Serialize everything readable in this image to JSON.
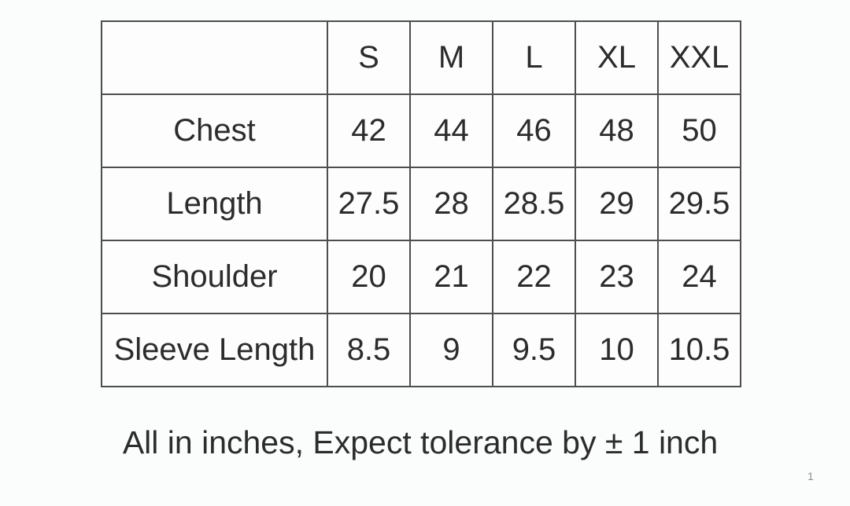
{
  "table": {
    "corner": "",
    "size_headers": [
      "S",
      "M",
      "L",
      "XL",
      "XXL"
    ],
    "rows": [
      {
        "label": "Chest",
        "values": [
          "42",
          "44",
          "46",
          "48",
          "50"
        ]
      },
      {
        "label": "Length",
        "values": [
          "27.5",
          "28",
          "28.5",
          "29",
          "29.5"
        ]
      },
      {
        "label": "Shoulder",
        "values": [
          "20",
          "21",
          "22",
          "23",
          "24"
        ]
      },
      {
        "label": "Sleeve Length",
        "values": [
          "8.5",
          "9",
          "9.5",
          "10",
          "10.5"
        ]
      }
    ]
  },
  "footer": {
    "note": "All in inches, Expect tolerance by ± 1 inch"
  },
  "page_number": "1",
  "colors": {
    "background": "#fbfcfc",
    "cell_background": "#fdfdfd",
    "border": "#4e4e4e",
    "text": "#2c2c2c",
    "page_number": "#8c8c8c"
  }
}
